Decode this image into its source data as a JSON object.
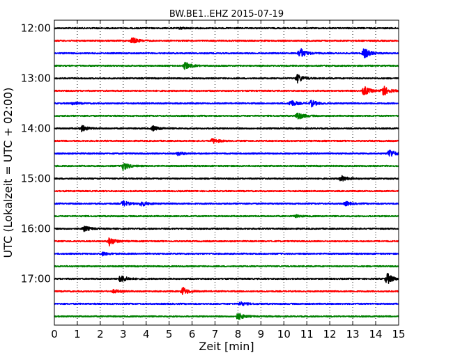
{
  "chart_data": {
    "type": "line",
    "title": "BW.BE1..EHZ 2015-07-19",
    "xlabel": "Zeit  [min]",
    "ylabel": "UTC (Lokalzeit = UTC + 02:00)",
    "xlim": [
      0,
      15
    ],
    "x_ticks": [
      0,
      1,
      2,
      3,
      4,
      5,
      6,
      7,
      8,
      9,
      10,
      11,
      12,
      13,
      14,
      15
    ],
    "y_tick_labels": [
      "12:00",
      "13:00",
      "14:00",
      "15:00",
      "16:00",
      "17:00"
    ],
    "grid": "vertical dotted lines at each minute",
    "colors": [
      "#000000",
      "#ff0000",
      "#0000ff",
      "#008000"
    ],
    "rows": [
      {
        "start": "12:00",
        "events": [
          {
            "t": 5.5,
            "amp": 0.15
          }
        ]
      },
      {
        "start": "12:15",
        "events": [
          {
            "t": 3.4,
            "amp": 0.55
          }
        ]
      },
      {
        "start": "12:30",
        "events": [
          {
            "t": 10.7,
            "amp": 0.95
          },
          {
            "t": 13.5,
            "amp": 0.95
          }
        ]
      },
      {
        "start": "12:45",
        "events": [
          {
            "t": 5.7,
            "amp": 0.65
          }
        ]
      },
      {
        "start": "13:00",
        "events": [
          {
            "t": 10.6,
            "amp": 0.75
          }
        ]
      },
      {
        "start": "13:15",
        "events": [
          {
            "t": 13.5,
            "amp": 0.8
          },
          {
            "t": 14.3,
            "amp": 1.0
          }
        ]
      },
      {
        "start": "13:30",
        "events": [
          {
            "t": 0.8,
            "amp": 0.25
          },
          {
            "t": 10.3,
            "amp": 0.6
          },
          {
            "t": 11.2,
            "amp": 0.55
          }
        ]
      },
      {
        "start": "13:45",
        "events": [
          {
            "t": 10.6,
            "amp": 0.7
          }
        ]
      },
      {
        "start": "14:00",
        "events": [
          {
            "t": 1.2,
            "amp": 0.55
          },
          {
            "t": 4.3,
            "amp": 0.45
          }
        ]
      },
      {
        "start": "14:15",
        "events": [
          {
            "t": 6.9,
            "amp": 0.45
          }
        ]
      },
      {
        "start": "14:30",
        "events": [
          {
            "t": 5.4,
            "amp": 0.35
          },
          {
            "t": 14.6,
            "amp": 0.75
          }
        ]
      },
      {
        "start": "14:45",
        "events": [
          {
            "t": 3.0,
            "amp": 0.75
          }
        ]
      },
      {
        "start": "15:00",
        "events": [
          {
            "t": 12.5,
            "amp": 0.55
          }
        ]
      },
      {
        "start": "15:15",
        "events": []
      },
      {
        "start": "15:30",
        "events": [
          {
            "t": 3.0,
            "amp": 0.5
          },
          {
            "t": 3.8,
            "amp": 0.45
          },
          {
            "t": 12.7,
            "amp": 0.35
          }
        ]
      },
      {
        "start": "15:45",
        "events": [
          {
            "t": 10.5,
            "amp": 0.2
          }
        ]
      },
      {
        "start": "16:00",
        "events": [
          {
            "t": 1.3,
            "amp": 0.5
          }
        ]
      },
      {
        "start": "16:15",
        "events": [
          {
            "t": 2.4,
            "amp": 0.75
          }
        ]
      },
      {
        "start": "16:30",
        "events": [
          {
            "t": 2.1,
            "amp": 0.3
          }
        ]
      },
      {
        "start": "16:45",
        "events": []
      },
      {
        "start": "17:00",
        "events": [
          {
            "t": 2.9,
            "amp": 0.7
          },
          {
            "t": 14.5,
            "amp": 1.0
          }
        ]
      },
      {
        "start": "17:15",
        "events": [
          {
            "t": 2.6,
            "amp": 0.3
          },
          {
            "t": 5.6,
            "amp": 0.7
          }
        ]
      },
      {
        "start": "17:30",
        "events": [
          {
            "t": 8.1,
            "amp": 0.35
          }
        ]
      },
      {
        "start": "17:45",
        "events": [
          {
            "t": 8.0,
            "amp": 0.65
          }
        ]
      }
    ]
  }
}
